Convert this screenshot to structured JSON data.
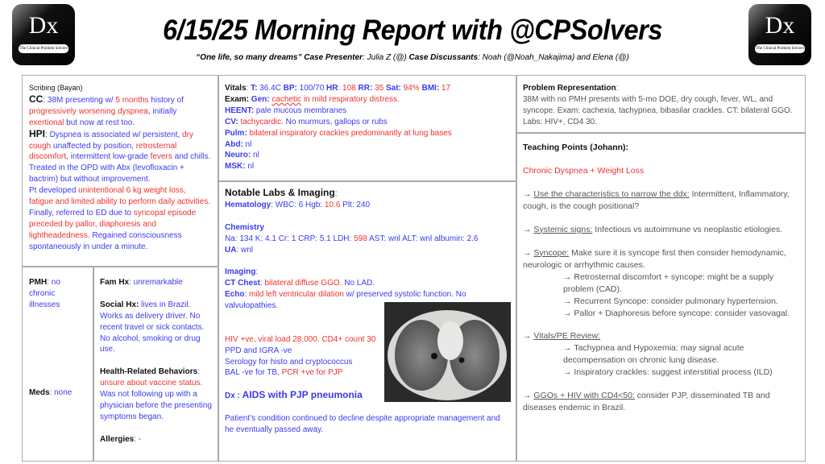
{
  "header": {
    "title": "6/15/25 Morning Report with @CPSolvers",
    "quote": "“One life, so many dreams”",
    "presenter_label": "Case Presenter",
    "presenter": ": Julia Z (@) ",
    "discussants_label": "Case Discussants",
    "discussants": ": Noah (@Noah_Nakajima) and Elena (@)",
    "logo_text": "Dx",
    "logo_tagline": "The Clinical Problem Solvers"
  },
  "colors": {
    "blue": "#3a3af0",
    "red": "#f03030",
    "gray": "#555555",
    "black": "#111111"
  },
  "blocks": {
    "history": [
      [
        {
          "t": "Scribing (Bayan)",
          "c": "k",
          "s": "s"
        }
      ],
      [
        {
          "t": "CC",
          "c": "k",
          "b": 1,
          "s": "l"
        },
        {
          "t": ": 38M presenting w/ ",
          "c": "b"
        },
        {
          "t": "5 months",
          "c": "r"
        },
        {
          "t": " history of ",
          "c": "b"
        },
        {
          "t": "progressively worsening dyspnea",
          "c": "r"
        },
        {
          "t": ", initially ",
          "c": "b"
        },
        {
          "t": "exertional",
          "c": "r"
        },
        {
          "t": " but now at rest too.",
          "c": "b"
        }
      ],
      [
        {
          "t": "HPI",
          "c": "k",
          "b": 1,
          "s": "l"
        },
        {
          "t": ": Dyspnea is associated w/ persistent, ",
          "c": "b"
        },
        {
          "t": "dry cough",
          "c": "r"
        },
        {
          "t": " unaffected by position, ",
          "c": "b"
        },
        {
          "t": "retrosternal discomfort",
          "c": "r"
        },
        {
          "t": ", intermittent low-grade ",
          "c": "b"
        },
        {
          "t": "fevers",
          "c": "r"
        },
        {
          "t": " and chills. Treated in the OPD with Abx (levofloxacin + bactrim) but without improvement.",
          "c": "b"
        }
      ],
      [
        {
          "t": "Pt developed ",
          "c": "b"
        },
        {
          "t": "unintentional 6 kg weight loss, fatigue and limited ability to perform daily activities.",
          "c": "r"
        }
      ],
      [
        {
          "t": "Finally, referred to ED due to ",
          "c": "b"
        },
        {
          "t": "syncopal episode preceded by pallor, diaphoresis and lightheadedness",
          "c": "r"
        },
        {
          "t": ". Regained consciousness spontaneously in under a minute.",
          "c": "b"
        }
      ]
    ],
    "pmh": [
      [
        {
          "t": "PMH",
          "c": "k",
          "b": 1
        },
        {
          "t": ": no chronic illnesses",
          "c": "b"
        }
      ]
    ],
    "meds": [
      [
        {
          "t": "Meds",
          "c": "k",
          "b": 1
        },
        {
          "t": ": none",
          "c": "b"
        }
      ]
    ],
    "social": [
      [
        {
          "t": "Fam Hx",
          "c": "k",
          "b": 1
        },
        {
          "t": ": unremarkable",
          "c": "b"
        }
      ],
      [],
      [
        {
          "t": "Social Hx:",
          "c": "k",
          "b": 1
        },
        {
          "t": " lives in Brazil. Works as delivery driver. No recent travel or sick contacts. No alcohol, smoking or drug use.",
          "c": "b"
        }
      ],
      [],
      [
        {
          "t": "Health-Related Behaviors",
          "c": "k",
          "b": 1
        },
        {
          "t": ": ",
          "c": "b"
        },
        {
          "t": "unsure about vaccine status.",
          "c": "r"
        },
        {
          "t": " Was not following up with a physician before the presenting symptoms began.",
          "c": "b"
        }
      ],
      [],
      [
        {
          "t": "Allergies",
          "c": "k",
          "b": 1
        },
        {
          "t": ": -",
          "c": "b"
        }
      ]
    ],
    "exam": [
      [
        {
          "t": "Vitals",
          "c": "k",
          "b": 1
        },
        {
          "t": ": ",
          "c": "b"
        },
        {
          "t": "T:",
          "c": "b",
          "b": 1
        },
        {
          "t": " 36.4C ",
          "c": "b"
        },
        {
          "t": "BP:",
          "c": "b",
          "b": 1
        },
        {
          "t": " 100/70 ",
          "c": "b"
        },
        {
          "t": "HR",
          "c": "b",
          "b": 1
        },
        {
          "t": ": 108 ",
          "c": "r"
        },
        {
          "t": "RR:",
          "c": "b",
          "b": 1
        },
        {
          "t": " 35 ",
          "c": "r"
        },
        {
          "t": "Sat:",
          "c": "b",
          "b": 1
        },
        {
          "t": " 94% ",
          "c": "r"
        },
        {
          "t": "BMI:",
          "c": "b",
          "b": 1
        },
        {
          "t": " 17",
          "c": "r"
        }
      ],
      [
        {
          "t": "Exam: ",
          "c": "k",
          "b": 1
        },
        {
          "t": "Gen:",
          "c": "b",
          "b": 1
        },
        {
          "t": " ",
          "c": "r"
        },
        {
          "t": "cachetic",
          "c": "r",
          "sq": 1
        },
        {
          "t": " in mild respiratory distress.",
          "c": "r"
        }
      ],
      [
        {
          "t": "HEENT:",
          "c": "b",
          "b": 1
        },
        {
          "t": " pale mucous membranes",
          "c": "b"
        }
      ],
      [
        {
          "t": "CV:",
          "c": "b",
          "b": 1
        },
        {
          "t": " tachycardic.",
          "c": "r"
        },
        {
          "t": " No murmurs, gallops or rubs",
          "c": "b"
        }
      ],
      [
        {
          "t": "Pulm:",
          "c": "b",
          "b": 1
        },
        {
          "t": " bilateral inspiratory crackles predominantly at lung bases",
          "c": "r"
        }
      ],
      [
        {
          "t": "Abd:",
          "c": "b",
          "b": 1
        },
        {
          "t": " nl",
          "c": "b"
        }
      ],
      [
        {
          "t": "Neuro:",
          "c": "b",
          "b": 1
        },
        {
          "t": " nl",
          "c": "b"
        }
      ],
      [
        {
          "t": "MSK:",
          "c": "b",
          "b": 1
        },
        {
          "t": " nl",
          "c": "b"
        }
      ]
    ],
    "labs": [
      [
        {
          "t": "Notable Labs & Imaging",
          "c": "k",
          "b": 1,
          "s": "l"
        },
        {
          "t": ":",
          "c": "b"
        }
      ],
      [
        {
          "t": "Hematology",
          "c": "b",
          "b": 1
        },
        {
          "t": ": WBC: 6 Hgb: ",
          "c": "b"
        },
        {
          "t": "10.6",
          "c": "r"
        },
        {
          "t": " Plt: 240",
          "c": "b"
        }
      ],
      [],
      [
        {
          "t": "Chemistry",
          "c": "b",
          "b": 1
        }
      ],
      [
        {
          "t": "Na: 134 K: 4.1 Cr: 1 CRP: 5.1 LDH: ",
          "c": "b"
        },
        {
          "t": "598",
          "c": "r"
        },
        {
          "t": " AST: wnl ALT: wnl albumin: 2.6",
          "c": "b"
        }
      ],
      [
        {
          "t": "UA",
          "c": "b",
          "b": 1
        },
        {
          "t": ": wnl",
          "c": "b"
        }
      ],
      [],
      [
        {
          "t": "Imaging",
          "c": "b",
          "b": 1
        },
        {
          "t": ":",
          "c": "b"
        }
      ],
      [
        {
          "t": "CT Chest",
          "c": "b",
          "b": 1
        },
        {
          "t": ": ",
          "c": "b"
        },
        {
          "t": "bilateral diffuse GGO.",
          "c": "r"
        },
        {
          "t": " No LAD.",
          "c": "b"
        }
      ],
      [
        {
          "t": "Echo",
          "c": "b",
          "b": 1
        },
        {
          "t": ": ",
          "c": "b"
        },
        {
          "t": "mild left ventricular dilation",
          "c": "r"
        },
        {
          "t": " w/ preserved systolic function. No valvulopathies.",
          "c": "b"
        }
      ],
      [],
      [],
      [
        {
          "t": "HIV +ve, viral load 28,000. CD4+ count 30",
          "c": "r"
        }
      ],
      [
        {
          "t": "PPD and IGRA -ve",
          "c": "b"
        }
      ],
      [
        {
          "t": "Serology for histo and cryptococcus",
          "c": "b"
        }
      ],
      [
        {
          "t": "BAL -ve for TB, ",
          "c": "b"
        },
        {
          "t": "PCR +ve for PJP",
          "c": "r"
        }
      ],
      [],
      [
        {
          "t": "Dx : ",
          "c": "b",
          "b": 1
        },
        {
          "t": "AIDS with PJP pneumonia",
          "c": "b",
          "b": 1,
          "s": "l"
        }
      ],
      [],
      [
        {
          "t": "Patient’s condition continued to decline despite appropriate management and he eventually passed away.",
          "c": "b"
        }
      ]
    ],
    "problem": [
      [
        {
          "t": "Problem Representation",
          "c": "k",
          "b": 1
        },
        {
          "t": ":",
          "c": "b"
        }
      ],
      [
        {
          "t": "38M with no PMH presents with 5-mo DOE, dry cough, fever, WL, and syncope. Exam: cachexia, tachypnea, bibasilar crackles. CT: bilateral GGO. Labs: HIV+, CD4 30.",
          "c": "g"
        }
      ]
    ],
    "teaching": [
      [
        {
          "t": "Teaching Points (Johann):",
          "c": "k",
          "b": 1
        }
      ],
      [],
      [
        {
          "t": "Chronic Dyspnea + Weight Loss",
          "c": "r"
        }
      ],
      [],
      [
        {
          "t": "→ ",
          "c": "g"
        },
        {
          "t": "Use the characteristics to narrow the ddx:",
          "c": "g",
          "u": 1
        },
        {
          "t": " Intermittent, Inflammatory, cough, is the cough positional?",
          "c": "g"
        }
      ],
      [],
      [
        {
          "t": "→ ",
          "c": "g"
        },
        {
          "t": "Systemic signs:",
          "c": "g",
          "u": 1
        },
        {
          "t": " Infectious vs autoimmune vs neoplastic etiologies.",
          "c": "g"
        }
      ],
      [],
      [
        {
          "t": "→ ",
          "c": "g"
        },
        {
          "t": "Syncope:",
          "c": "g",
          "u": 1
        },
        {
          "t": " Make sure it is syncope first then consider hemodynamic, neurologic or arrhythmic causes.",
          "c": "g"
        }
      ],
      [
        {
          "t": "→ Retrosternal discomfort + syncope: might be a supply problem (CAD).",
          "c": "g",
          "i": 1
        }
      ],
      [
        {
          "t": "→ Recurrent Syncope: consider pulmonary hypertension.",
          "c": "g",
          "i": 1
        }
      ],
      [
        {
          "t": "→ Pallor + Diaphoresis before syncope: consider vasovagal.",
          "c": "g",
          "i": 1
        }
      ],
      [],
      [
        {
          "t": "→ ",
          "c": "g"
        },
        {
          "t": "Vitals/PE Review:",
          "c": "g",
          "u": 1
        }
      ],
      [
        {
          "t": "→ Tachypnea and Hypoxemia: may signal acute decompensation on chronic lung disease.",
          "c": "g",
          "i": 1
        }
      ],
      [
        {
          "t": "→ Inspiratory crackles: suggest interstitial process (ILD)",
          "c": "g",
          "i": 1
        }
      ],
      [],
      [
        {
          "t": "→ ",
          "c": "g"
        },
        {
          "t": "GGOs + HIV with CD4<50:",
          "c": "g",
          "u": 1
        },
        {
          "t": " consider PJP, disseminated TB and diseases endemic in Brazil.",
          "c": "g"
        }
      ]
    ]
  }
}
